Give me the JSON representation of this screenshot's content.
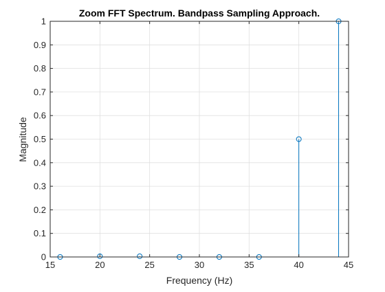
{
  "chart_data": {
    "type": "stem",
    "title": "Zoom FFT Spectrum. Bandpass Sampling Approach.",
    "xlabel": "Frequency (Hz)",
    "ylabel": "Magnitude",
    "xlim": [
      15,
      45
    ],
    "ylim": [
      0,
      1
    ],
    "xticks": [
      15,
      20,
      25,
      30,
      35,
      40,
      45
    ],
    "yticks": [
      0,
      0.1,
      0.2,
      0.3,
      0.4,
      0.5,
      0.6,
      0.7,
      0.8,
      0.9,
      1
    ],
    "grid": true,
    "series": [
      {
        "x": [
          16,
          20,
          24,
          28,
          32,
          36,
          40,
          44
        ],
        "values": [
          0.0,
          0.003,
          0.003,
          0.0,
          0.0,
          0.0,
          0.5,
          1.0
        ],
        "color": "#0072BD",
        "marker": "circle-open"
      }
    ]
  }
}
